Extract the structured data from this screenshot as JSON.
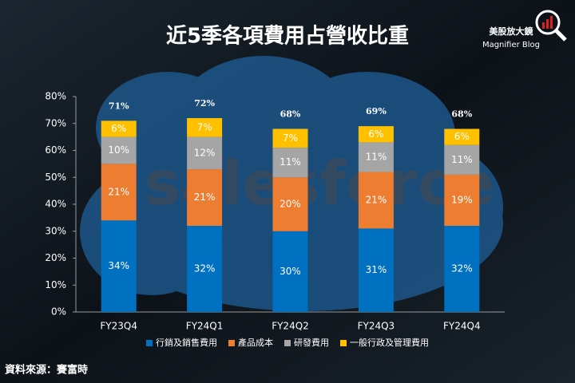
{
  "chart_data": {
    "type": "stacked-bar",
    "title": "近5季各項費用占營收比重",
    "categories": [
      "FY23Q4",
      "FY24Q1",
      "FY24Q2",
      "FY24Q3",
      "FY24Q4"
    ],
    "series": [
      {
        "name": "行銷及銷售費用",
        "color": "#0070c0",
        "values": [
          34,
          32,
          30,
          31,
          32
        ],
        "value_labels": [
          "34%",
          "32%",
          "30%",
          "31%",
          "32%"
        ]
      },
      {
        "name": "產品成本",
        "color": "#ed7d31",
        "values": [
          21,
          21,
          20,
          21,
          19
        ],
        "value_labels": [
          "21%",
          "21%",
          "20%",
          "21%",
          "19%"
        ]
      },
      {
        "name": "研發費用",
        "color": "#a5a5a5",
        "values": [
          10,
          12,
          11,
          11,
          11
        ],
        "value_labels": [
          "10%",
          "12%",
          "11%",
          "11%",
          "11%"
        ]
      },
      {
        "name": "一般行政及管理費用",
        "color": "#ffc000",
        "values": [
          6,
          7,
          7,
          6,
          6
        ],
        "value_labels": [
          "6%",
          "7%",
          "7%",
          "6%",
          "6%"
        ]
      }
    ],
    "totals": [
      71,
      72,
      68,
      69,
      68
    ],
    "total_labels": [
      "71%",
      "72%",
      "68%",
      "69%",
      "68%"
    ],
    "ylim": [
      0,
      80
    ],
    "yticks": [
      {
        "value": 0,
        "label": "0%"
      },
      {
        "value": 10,
        "label": "10%"
      },
      {
        "value": 20,
        "label": "20%"
      },
      {
        "value": 30,
        "label": "30%"
      },
      {
        "value": 40,
        "label": "40%"
      },
      {
        "value": 50,
        "label": "50%"
      },
      {
        "value": 60,
        "label": "60%"
      },
      {
        "value": 70,
        "label": "70%"
      },
      {
        "value": 80,
        "label": "80%"
      }
    ],
    "legend": "bottom",
    "source": "資料來源：賽富時",
    "watermark": "salesforce",
    "brand": {
      "name": "美股放大鏡",
      "subtitle": "Magnifier Blog"
    }
  }
}
